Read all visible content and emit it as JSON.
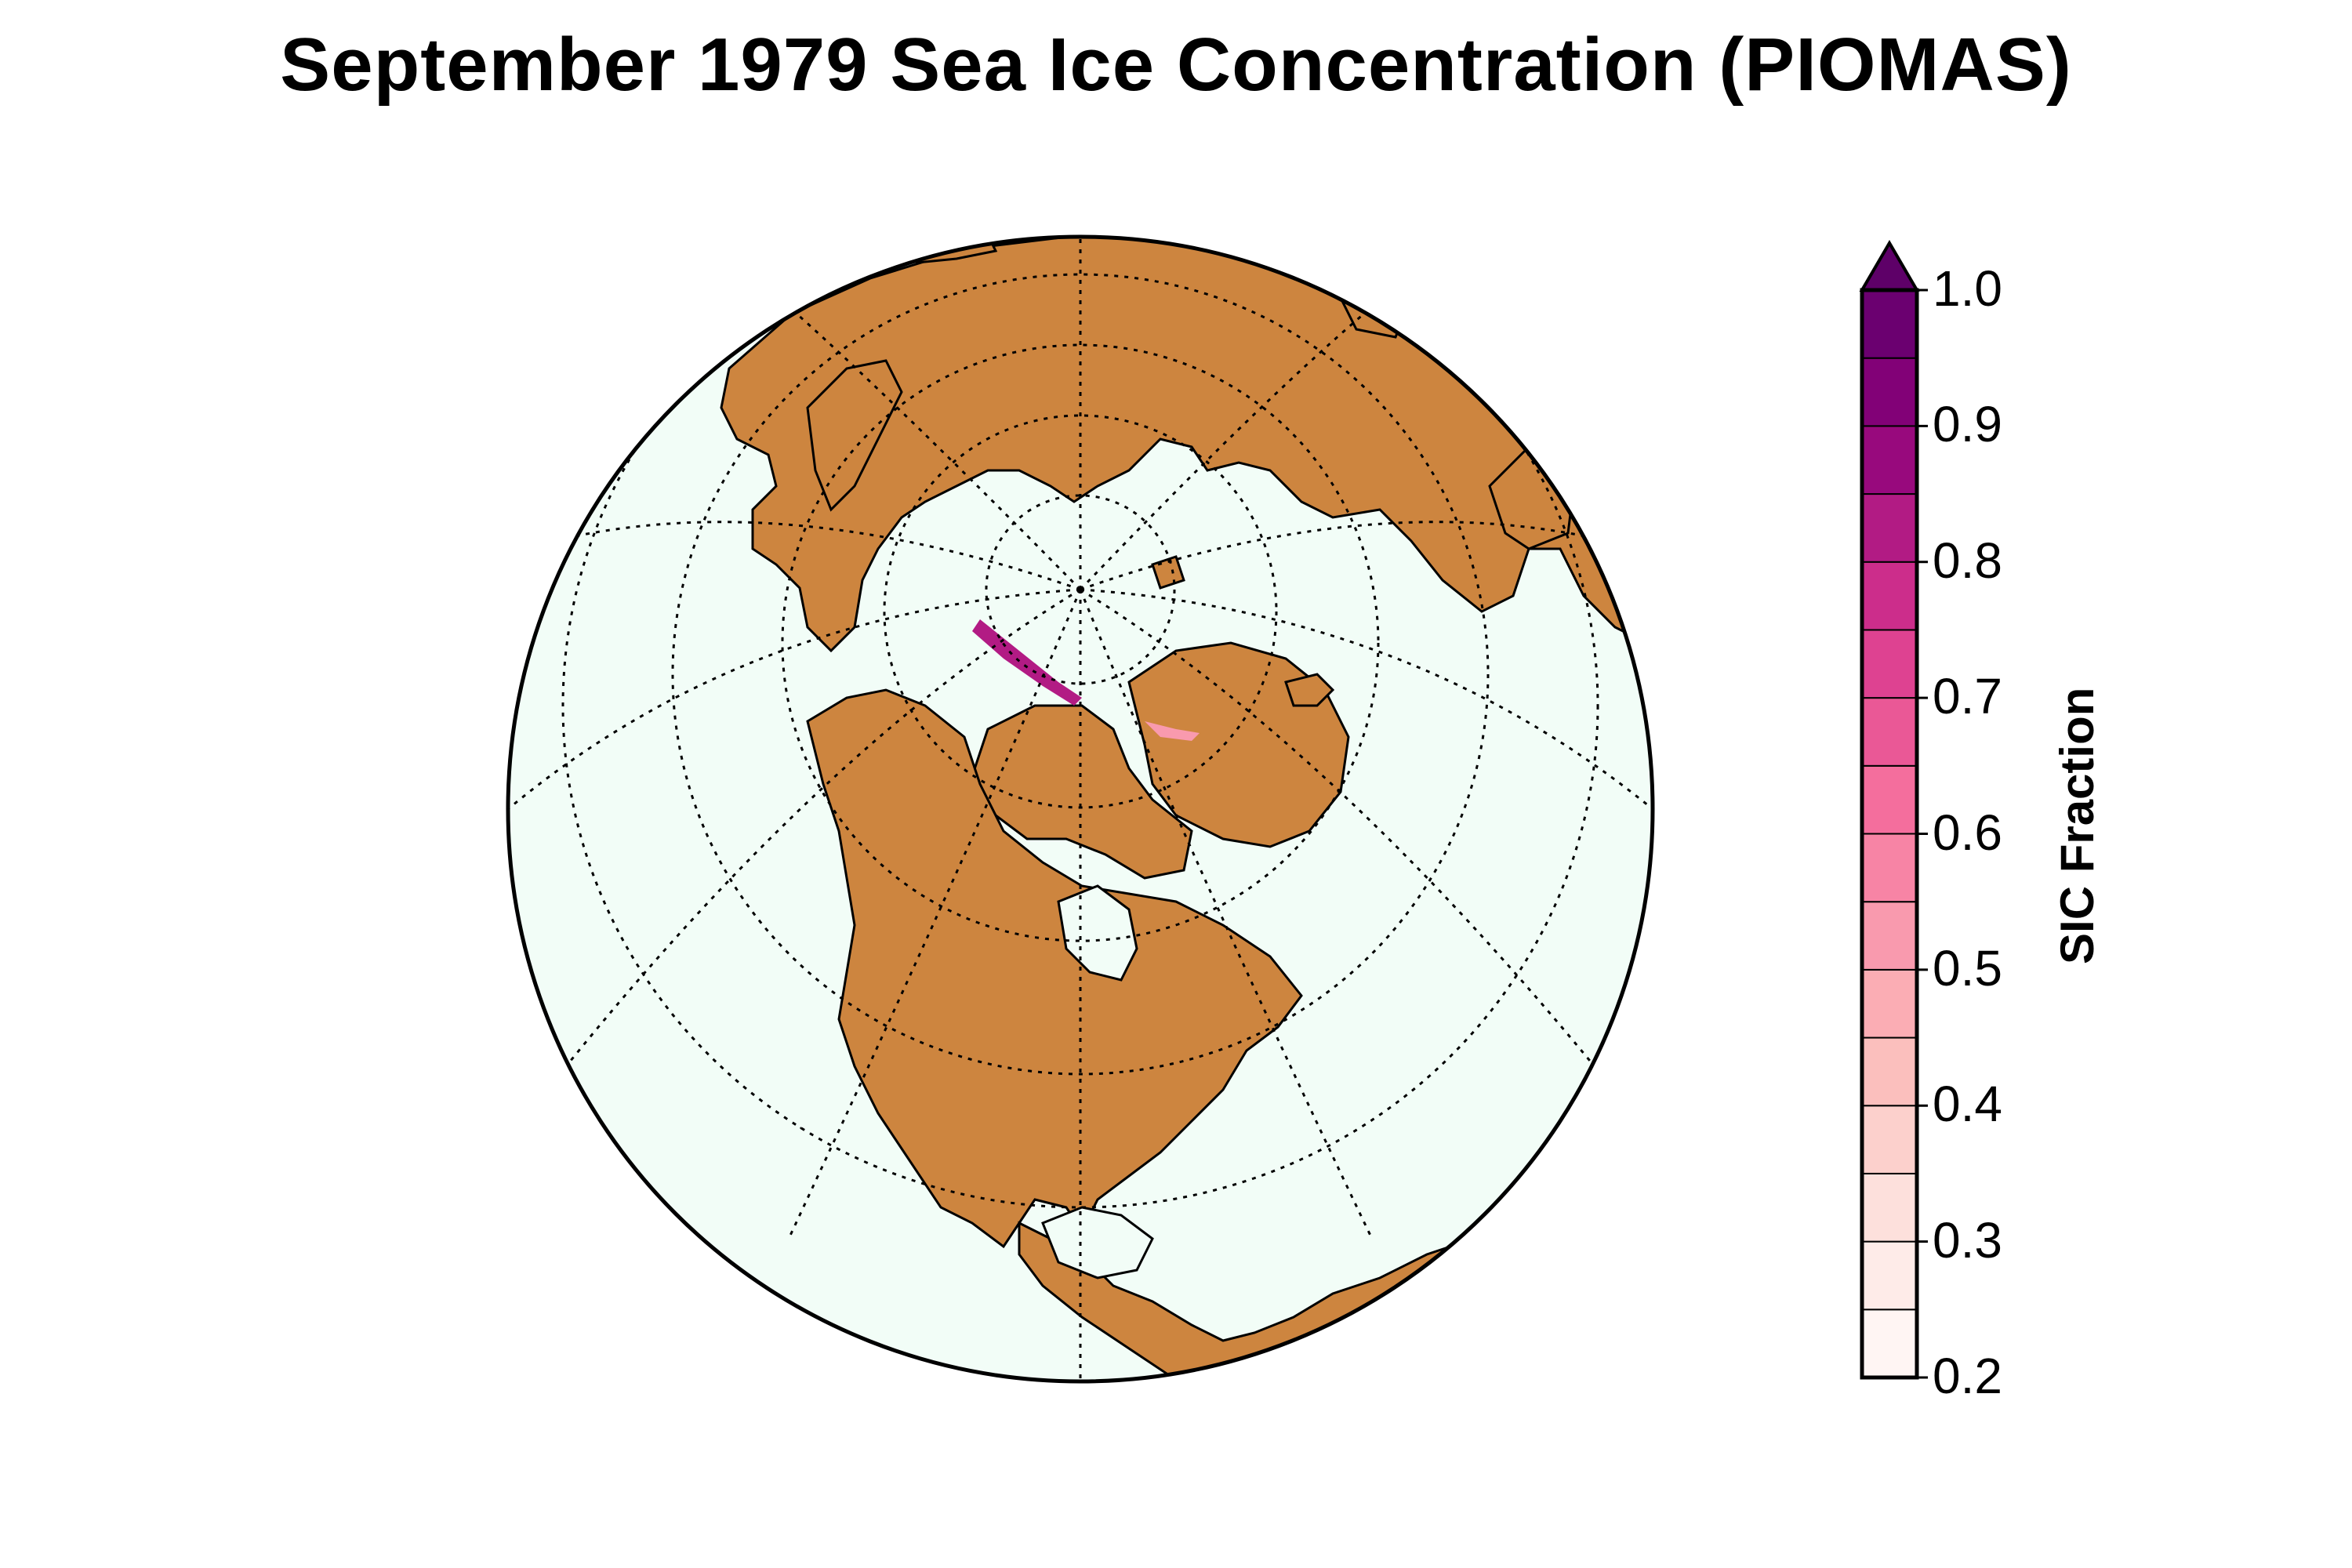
{
  "title": "September 1979 Sea Ice Concentration (PIOMAS)",
  "colors": {
    "ocean": "#f2fdf7",
    "land": "#cd853f",
    "coastline": "#000000",
    "graticule": "#000000"
  },
  "colorbar": {
    "label": "SIC Fraction",
    "extend": "max",
    "ticks": [
      "1.0",
      "0.9",
      "0.8",
      "0.7",
      "0.6",
      "0.5",
      "0.4",
      "0.3",
      "0.2"
    ],
    "levels": [
      0.2,
      0.25,
      0.3,
      0.35,
      0.4,
      0.45,
      0.5,
      0.55,
      0.6,
      0.65,
      0.7,
      0.75,
      0.8,
      0.85,
      0.9,
      0.95,
      1.0
    ],
    "colors": [
      "#fff5f3",
      "#feebe8",
      "#fde0dc",
      "#fcd0cc",
      "#fbbfbd",
      "#fbadb4",
      "#f99aae",
      "#f784a5",
      "#f46e9d",
      "#ea5896",
      "#de4291",
      "#cc2d8b",
      "#b21b84",
      "#98097d",
      "#820177",
      "#6b0070"
    ],
    "overflow_color": "#5e0068"
  },
  "map": {
    "projection": "orthographic, north polar view",
    "features": [
      "land",
      "ocean",
      "coastlines",
      "lat-lon grid (dotted)",
      "sea ice concentration"
    ]
  }
}
